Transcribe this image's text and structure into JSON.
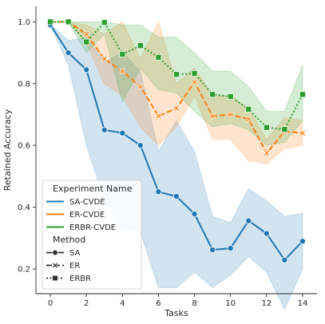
{
  "chart_data": {
    "type": "line",
    "xlabel": "Tasks",
    "ylabel": "Retained Accuracy",
    "xlim": [
      -0.8,
      14.8
    ],
    "ylim": [
      0.12,
      1.05
    ],
    "x_ticks": [
      0,
      2,
      4,
      6,
      8,
      10,
      12,
      14
    ],
    "y_ticks": [
      0.2,
      0.4,
      0.6,
      0.8,
      1.0
    ],
    "grid": false,
    "legend_position": "lower-left",
    "legend": {
      "hue_title": "Experiment Name",
      "style_title": "Method",
      "style_entries": [
        {
          "label": "SA",
          "dash": "solid",
          "marker": "circle"
        },
        {
          "label": "ER",
          "dash": "dashed",
          "marker": "x"
        },
        {
          "label": "ERBR",
          "dash": "dotted",
          "marker": "square"
        }
      ]
    },
    "series": [
      {
        "name": "SA-CVDE",
        "method": "SA",
        "color": "#1f77b4",
        "dash": "solid",
        "marker": "circle",
        "x": [
          0,
          1,
          2,
          3,
          4,
          5,
          6,
          7,
          8,
          9,
          10,
          11,
          12,
          13,
          14
        ],
        "y": [
          0.99,
          0.9,
          0.845,
          0.65,
          0.64,
          0.6,
          0.45,
          0.435,
          0.378,
          0.262,
          0.267,
          0.356,
          0.315,
          0.229,
          0.29
        ],
        "band_low": [
          0.99,
          0.86,
          0.6,
          0.42,
          0.33,
          0.32,
          0.14,
          0.14,
          0.19,
          0.14,
          0.18,
          0.24,
          0.19,
          0.07,
          0.2
        ],
        "band_high": [
          0.99,
          0.94,
          0.95,
          0.87,
          0.9,
          0.84,
          0.58,
          0.68,
          0.58,
          0.37,
          0.35,
          0.46,
          0.42,
          0.37,
          0.38
        ]
      },
      {
        "name": "ER-CVDE",
        "method": "ER",
        "color": "#ff7f0e",
        "dash": "dashed",
        "marker": "x",
        "x": [
          0,
          1,
          2,
          3,
          4,
          5,
          6,
          7,
          8,
          9,
          10,
          11,
          12,
          13,
          14
        ],
        "y": [
          1.0,
          1.0,
          0.96,
          0.88,
          0.84,
          0.79,
          0.695,
          0.72,
          0.805,
          0.695,
          0.7,
          0.685,
          0.575,
          0.645,
          0.64
        ],
        "band_low": [
          1.0,
          1.0,
          0.93,
          0.8,
          0.76,
          0.66,
          0.6,
          0.66,
          0.76,
          0.62,
          0.62,
          0.55,
          0.54,
          0.59,
          0.6
        ],
        "band_high": [
          1.0,
          1.0,
          0.99,
          0.96,
          1.0,
          0.88,
          1.0,
          0.8,
          0.85,
          0.76,
          0.76,
          0.72,
          0.62,
          0.69,
          0.68
        ]
      },
      {
        "name": "ERBR-CVDE",
        "method": "ERBR",
        "color": "#2ca02c",
        "dash": "dotted",
        "marker": "square",
        "x": [
          0,
          1,
          2,
          3,
          4,
          5,
          6,
          7,
          8,
          9,
          10,
          11,
          12,
          13,
          14
        ],
        "y": [
          1.0,
          1.0,
          0.935,
          0.998,
          0.895,
          0.923,
          0.885,
          0.83,
          0.833,
          0.765,
          0.758,
          0.717,
          0.658,
          0.652,
          0.765
        ],
        "band_low": [
          1.0,
          1.0,
          0.9,
          0.96,
          0.74,
          0.85,
          0.78,
          0.77,
          0.71,
          0.66,
          0.67,
          0.65,
          0.6,
          0.61,
          0.68
        ],
        "band_high": [
          1.0,
          1.0,
          1.0,
          1.0,
          0.99,
          0.99,
          0.95,
          0.95,
          0.9,
          0.84,
          0.84,
          0.79,
          0.71,
          0.71,
          0.86
        ]
      }
    ]
  }
}
